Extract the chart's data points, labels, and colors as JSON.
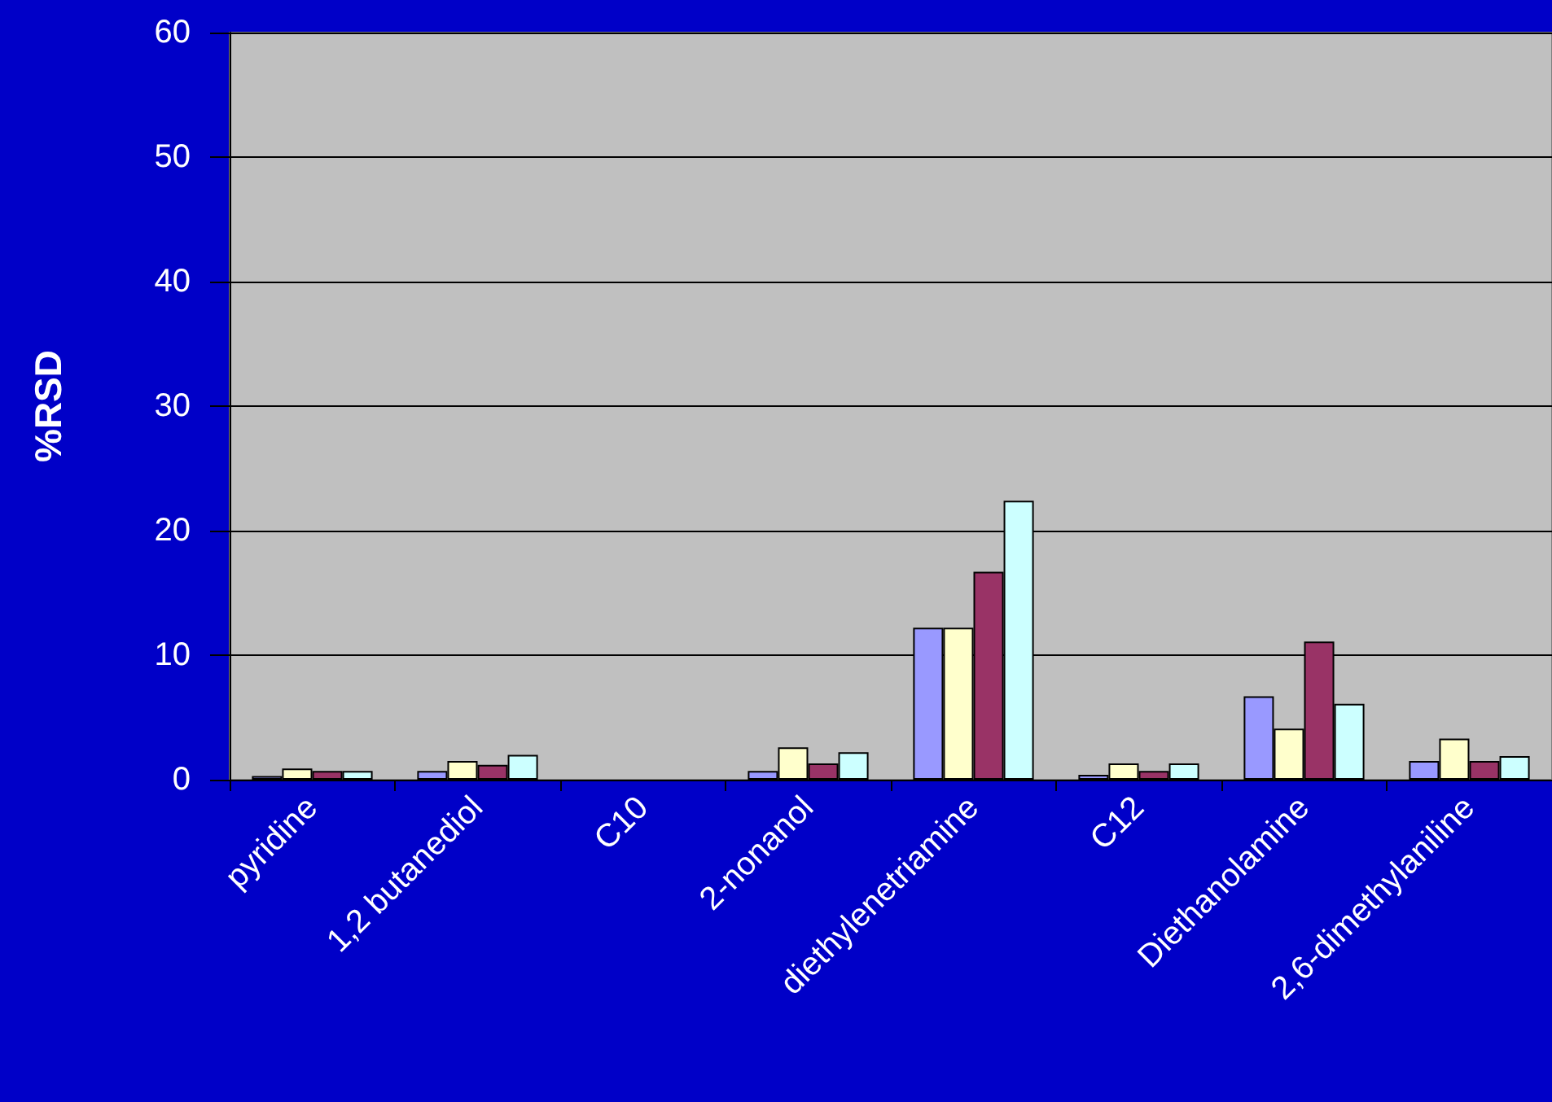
{
  "chart_data": {
    "type": "bar",
    "ylabel": "%RSD",
    "categories": [
      "pyridine",
      "1,2 butanediol",
      "C10",
      "2-nonanol",
      "diethylenetriamine",
      "C12",
      "Diethanolamine",
      "2,6-dimethylaniline"
    ],
    "series": [
      {
        "color": "#9999ff",
        "values": [
          0.3,
          0.7,
          null,
          0.7,
          12.2,
          0.4,
          6.7,
          1.5
        ]
      },
      {
        "color": "#ffffcc",
        "values": [
          0.9,
          1.5,
          null,
          2.6,
          12.2,
          1.3,
          4.1,
          3.3
        ]
      },
      {
        "color": "#993366",
        "values": [
          0.7,
          1.2,
          null,
          1.3,
          16.7,
          0.7,
          11.1,
          1.5
        ]
      },
      {
        "color": "#ccffff",
        "values": [
          0.7,
          2.0,
          null,
          2.2,
          22.4,
          1.3,
          6.1,
          1.9
        ]
      }
    ],
    "ylim": [
      0,
      60
    ],
    "yticks": [
      0,
      10,
      20,
      30,
      40,
      50,
      60
    ],
    "grid": "y"
  }
}
